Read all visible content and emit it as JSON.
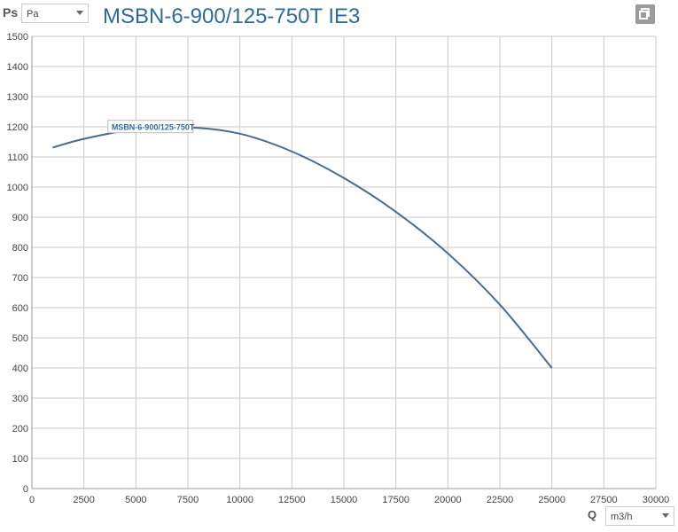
{
  "header": {
    "y_axis_symbol": "Ps",
    "y_unit_selected": "Pa",
    "title": "MSBN-6-900/125-750T IE3"
  },
  "footer": {
    "x_axis_symbol": "Q",
    "x_unit_selected": "m3/h"
  },
  "chart_data": {
    "type": "line",
    "title": "MSBN-6-900/125-750T IE3",
    "xlabel": "Q",
    "ylabel": "Ps",
    "xlim": [
      0,
      30000
    ],
    "ylim": [
      0,
      1500
    ],
    "x_ticks": [
      0,
      2500,
      5000,
      7500,
      10000,
      12500,
      15000,
      17500,
      20000,
      22500,
      25000,
      27500,
      30000
    ],
    "y_ticks": [
      0,
      100,
      200,
      300,
      400,
      500,
      600,
      700,
      800,
      900,
      1000,
      1100,
      1200,
      1300,
      1400,
      1500
    ],
    "grid": true,
    "series": [
      {
        "name": "MSBN-6-900/125-750T",
        "color": "#4a6a91",
        "x": [
          1000,
          2500,
          5000,
          7500,
          10000,
          12500,
          15000,
          17500,
          20000,
          22500,
          25000
        ],
        "y": [
          1131,
          1160,
          1192,
          1198,
          1177,
          1118,
          1030,
          918,
          780,
          610,
          400
        ]
      }
    ]
  }
}
